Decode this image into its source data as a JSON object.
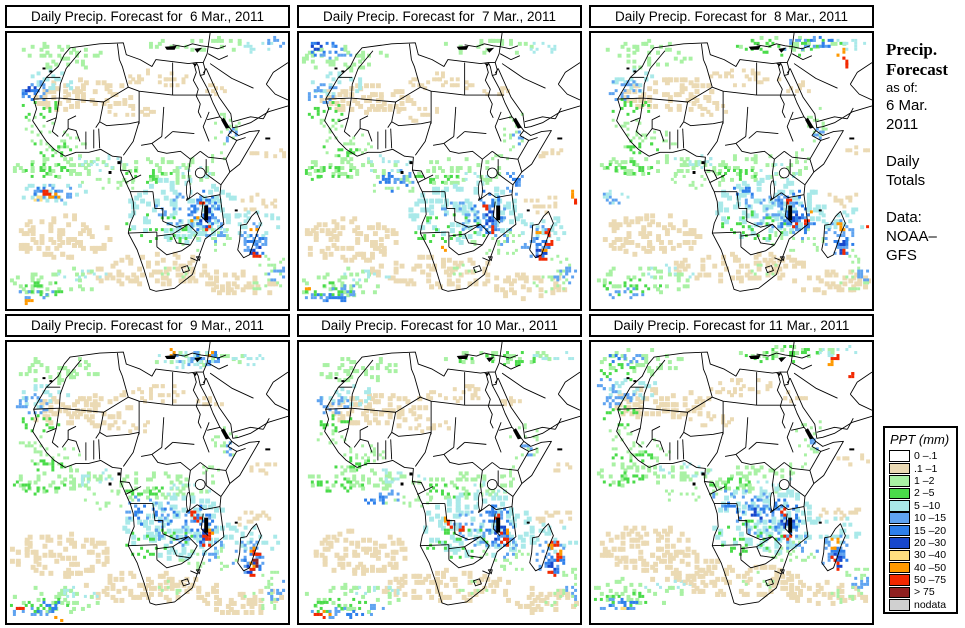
{
  "panels": [
    {
      "title": "Daily Precip. Forecast for  6 Mar., 2011",
      "seed": 11,
      "shift": [
        0,
        0
      ],
      "extra_spots": [
        [
          "b2",
          24,
          60,
          9,
          6,
          10
        ],
        [
          "b3",
          22,
          57,
          5,
          4,
          5
        ],
        [
          "c1",
          48,
          160,
          34,
          11,
          24,
          4
        ],
        [
          "b1",
          44,
          161,
          24,
          8,
          18
        ],
        [
          "b2",
          38,
          161,
          14,
          6,
          12
        ],
        [
          "y",
          30,
          166,
          7,
          3,
          5
        ],
        [
          "o",
          45,
          163,
          6,
          3,
          6
        ],
        [
          "r",
          39,
          161,
          6,
          3,
          7
        ],
        [
          "o",
          190,
          190,
          4,
          3,
          3
        ],
        [
          "r",
          283,
          236,
          3,
          3,
          3
        ],
        [
          "o",
          20,
          270,
          5,
          3,
          4
        ],
        [
          "b1",
          268,
          8,
          12,
          5,
          8
        ]
      ]
    },
    {
      "title": "Daily Precip. Forecast for  7 Mar., 2011",
      "seed": 22,
      "shift": [
        -6,
        2
      ],
      "extra_spots": [
        [
          "b2",
          28,
          12,
          16,
          8,
          14
        ],
        [
          "b1",
          42,
          18,
          18,
          8,
          12
        ],
        [
          "b3",
          20,
          10,
          8,
          5,
          6
        ],
        [
          "b2",
          100,
          148,
          16,
          10,
          14
        ],
        [
          "b1",
          110,
          142,
          16,
          8,
          10
        ],
        [
          "o",
          150,
          216,
          4,
          3,
          3
        ],
        [
          "r",
          284,
          168,
          3,
          6,
          5
        ],
        [
          "o",
          283,
          160,
          3,
          4,
          3
        ],
        [
          "r",
          258,
          200,
          4,
          4,
          5
        ],
        [
          "r",
          257,
          210,
          4,
          4,
          4
        ],
        [
          "o",
          255,
          216,
          3,
          3,
          3
        ],
        [
          "o",
          12,
          255,
          4,
          3,
          4
        ],
        [
          "b2",
          35,
          265,
          20,
          7,
          12
        ],
        [
          "b1",
          50,
          258,
          18,
          6,
          10
        ],
        [
          "b1",
          222,
          150,
          10,
          12,
          10
        ],
        [
          "b2",
          224,
          142,
          6,
          8,
          6
        ]
      ]
    },
    {
      "title": "Daily Precip. Forecast for  8 Mar., 2011",
      "seed": 33,
      "shift": [
        4,
        -2
      ],
      "extra_spots": [
        [
          "g2",
          195,
          14,
          55,
          8,
          28
        ],
        [
          "b1",
          212,
          12,
          28,
          7,
          18
        ],
        [
          "b2",
          228,
          10,
          12,
          5,
          8
        ],
        [
          "r",
          251,
          30,
          4,
          6,
          6
        ],
        [
          "o",
          249,
          20,
          4,
          4,
          4
        ],
        [
          "b1",
          14,
          170,
          10,
          6,
          8
        ],
        [
          "c1",
          20,
          166,
          16,
          7,
          8
        ],
        [
          "b2",
          150,
          160,
          16,
          8,
          10
        ],
        [
          "r",
          213,
          192,
          4,
          5,
          5
        ],
        [
          "o",
          216,
          186,
          3,
          4,
          3
        ],
        [
          "b2",
          208,
          192,
          14,
          10,
          12
        ],
        [
          "r",
          278,
          198,
          5,
          3,
          4
        ],
        [
          "o",
          248,
          196,
          3,
          4,
          3
        ],
        [
          "r",
          282,
          118,
          3,
          4,
          4
        ]
      ]
    },
    {
      "title": "Daily Precip. Forecast for  9 Mar., 2011",
      "seed": 44,
      "shift": [
        -3,
        4
      ],
      "extra_spots": [
        [
          "c1",
          185,
          12,
          42,
          9,
          30
        ],
        [
          "b1",
          196,
          11,
          26,
          7,
          16
        ],
        [
          "b2",
          206,
          9,
          12,
          5,
          8
        ],
        [
          "o",
          209,
          6,
          4,
          3,
          3
        ],
        [
          "o",
          170,
          5,
          4,
          3,
          3
        ],
        [
          "b2",
          152,
          168,
          22,
          12,
          18
        ],
        [
          "b1",
          142,
          160,
          26,
          12,
          16
        ],
        [
          "dr",
          255,
          210,
          3,
          8,
          6
        ],
        [
          "r",
          255,
          204,
          4,
          5,
          5
        ],
        [
          "o",
          250,
          218,
          4,
          3,
          3
        ],
        [
          "r",
          15,
          260,
          4,
          3,
          4
        ],
        [
          "o",
          55,
          270,
          5,
          3,
          4
        ],
        [
          "b2",
          40,
          258,
          16,
          6,
          10
        ],
        [
          "r",
          204,
          188,
          5,
          4,
          6
        ],
        [
          "o",
          208,
          184,
          4,
          3,
          4
        ],
        [
          "r",
          190,
          166,
          4,
          3,
          4
        ]
      ]
    },
    {
      "title": "Daily Precip. Forecast for 10 Mar., 2011",
      "seed": 55,
      "shift": [
        5,
        3
      ],
      "extra_spots": [
        [
          "r",
          148,
          176,
          4,
          3,
          4
        ],
        [
          "r",
          160,
          180,
          4,
          3,
          4
        ],
        [
          "o",
          144,
          172,
          3,
          3,
          3
        ],
        [
          "r",
          201,
          188,
          5,
          5,
          7
        ],
        [
          "o",
          206,
          184,
          4,
          3,
          3
        ],
        [
          "r",
          253,
          196,
          4,
          3,
          4
        ],
        [
          "r",
          255,
          210,
          4,
          4,
          5
        ],
        [
          "o",
          258,
          204,
          3,
          3,
          3
        ],
        [
          "r",
          14,
          268,
          5,
          3,
          5
        ],
        [
          "o",
          24,
          266,
          4,
          3,
          3
        ],
        [
          "b2",
          55,
          268,
          14,
          5,
          8
        ],
        [
          "b1",
          70,
          262,
          12,
          5,
          7
        ],
        [
          "b2",
          72,
          154,
          12,
          5,
          8
        ],
        [
          "b1",
          84,
          150,
          16,
          6,
          10
        ],
        [
          "g2",
          195,
          12,
          40,
          7,
          20
        ]
      ]
    },
    {
      "title": "Daily Precip. Forecast for 11 Mar., 2011",
      "seed": 66,
      "shift": [
        -2,
        -3
      ],
      "extra_spots": [
        [
          "r",
          249,
          16,
          4,
          4,
          5
        ],
        [
          "o",
          245,
          24,
          4,
          3,
          3
        ],
        [
          "r",
          266,
          32,
          3,
          4,
          4
        ],
        [
          "g2",
          30,
          32,
          20,
          10,
          14
        ],
        [
          "b1",
          40,
          20,
          14,
          7,
          10
        ],
        [
          "b2",
          24,
          17,
          8,
          5,
          6
        ],
        [
          "b1",
          14,
          44,
          10,
          8,
          8
        ],
        [
          "b2",
          162,
          168,
          26,
          12,
          20
        ],
        [
          "b1",
          150,
          158,
          30,
          12,
          18
        ],
        [
          "b3",
          170,
          172,
          8,
          6,
          6
        ],
        [
          "o",
          250,
          208,
          4,
          3,
          4
        ],
        [
          "r",
          246,
          216,
          3,
          3,
          3
        ],
        [
          "o",
          284,
          202,
          3,
          3,
          3
        ],
        [
          "r",
          284,
          196,
          3,
          3,
          3
        ],
        [
          "b2",
          36,
          262,
          18,
          6,
          10
        ],
        [
          "y",
          30,
          266,
          4,
          3,
          3
        ],
        [
          "t",
          100,
          226,
          60,
          13,
          40,
          5
        ],
        [
          "g2",
          198,
          14,
          44,
          7,
          22
        ]
      ]
    }
  ],
  "base_spots": [
    [
      "t",
      75,
      62,
      52,
      16,
      70,
      5
    ],
    [
      "t",
      150,
      45,
      35,
      9,
      26,
      4
    ],
    [
      "t",
      125,
      78,
      25,
      7,
      14,
      4
    ],
    [
      "t",
      55,
      205,
      50,
      22,
      90,
      5
    ],
    [
      "t",
      145,
      238,
      68,
      16,
      80,
      5
    ],
    [
      "t",
      240,
      252,
      42,
      12,
      40,
      5
    ],
    [
      "t",
      265,
      120,
      18,
      6,
      10,
      4
    ],
    [
      "t",
      205,
      55,
      15,
      5,
      8,
      4
    ],
    [
      "t",
      252,
      170,
      22,
      8,
      14,
      4
    ],
    [
      "g1",
      52,
      22,
      44,
      13,
      40,
      4
    ],
    [
      "c1",
      42,
      48,
      26,
      12,
      20,
      4
    ],
    [
      "b1",
      28,
      58,
      16,
      11,
      20
    ],
    [
      "g2",
      34,
      76,
      22,
      10,
      14
    ],
    [
      "g1",
      30,
      92,
      18,
      8,
      10
    ],
    [
      "g1",
      195,
      10,
      55,
      7,
      24,
      4
    ],
    [
      "c1",
      252,
      12,
      22,
      6,
      10
    ],
    [
      "g1",
      52,
      110,
      30,
      12,
      24
    ],
    [
      "g2",
      44,
      116,
      22,
      7,
      12
    ],
    [
      "g1",
      55,
      133,
      55,
      11,
      44,
      4
    ],
    [
      "g2",
      35,
      138,
      28,
      7,
      18
    ],
    [
      "c1",
      95,
      130,
      28,
      8,
      14
    ],
    [
      "g1",
      100,
      152,
      30,
      8,
      14
    ],
    [
      "g1",
      160,
      138,
      52,
      14,
      48,
      4
    ],
    [
      "g2",
      145,
      143,
      25,
      7,
      14
    ],
    [
      "c1",
      185,
      142,
      22,
      8,
      10
    ],
    [
      "c1",
      175,
      178,
      58,
      32,
      110,
      5
    ],
    [
      "g2",
      158,
      196,
      38,
      16,
      28
    ],
    [
      "b1",
      182,
      180,
      34,
      18,
      40
    ],
    [
      "b2",
      196,
      178,
      16,
      22,
      28
    ],
    [
      "b3",
      200,
      186,
      7,
      10,
      9
    ],
    [
      "g1",
      205,
      210,
      30,
      14,
      22
    ],
    [
      "b1",
      208,
      200,
      12,
      12,
      12
    ],
    [
      "r",
      196,
      172,
      4,
      3,
      4
    ],
    [
      "r",
      202,
      196,
      4,
      3,
      3
    ],
    [
      "c1",
      252,
      192,
      24,
      16,
      20,
      4
    ],
    [
      "b1",
      246,
      208,
      16,
      18,
      24
    ],
    [
      "b2",
      252,
      214,
      10,
      12,
      14
    ],
    [
      "b3",
      250,
      220,
      5,
      7,
      6
    ],
    [
      "r",
      251,
      224,
      4,
      4,
      4
    ],
    [
      "o",
      248,
      200,
      4,
      3,
      3
    ],
    [
      "g1",
      268,
      230,
      14,
      10,
      10
    ],
    [
      "b1",
      274,
      244,
      10,
      8,
      9
    ],
    [
      "g1",
      222,
      95,
      14,
      20,
      16
    ],
    [
      "b1",
      226,
      102,
      6,
      7,
      6
    ],
    [
      "g1",
      210,
      125,
      10,
      8,
      7
    ],
    [
      "g1",
      48,
      250,
      48,
      14,
      36,
      4
    ],
    [
      "g2",
      35,
      258,
      30,
      8,
      18
    ],
    [
      "b1",
      28,
      264,
      22,
      6,
      12
    ],
    [
      "c1",
      75,
      244,
      26,
      7,
      10
    ],
    [
      "g1",
      262,
      252,
      20,
      10,
      12
    ],
    [
      "b1",
      280,
      240,
      7,
      7,
      6
    ],
    [
      "g1",
      170,
      240,
      16,
      8,
      7
    ]
  ],
  "map_colors": {
    "t": "#EBDAB4",
    "g1": "#A9F1A4",
    "g2": "#4ADB4A",
    "c1": "#A9E9E9",
    "b1": "#5FA3F0",
    "b2": "#2E7FEB",
    "b3": "#1747CC",
    "y": "#FFDF7F",
    "o": "#FF9900",
    "r": "#F22800",
    "dr": "#8F2020"
  },
  "sidebar": {
    "heading_line1": "Precip.",
    "heading_line2": "Forecast",
    "as_of_label": "as of:",
    "as_of_date_line1": "6 Mar.",
    "as_of_date_line2": "2011",
    "totals_line1": "Daily",
    "totals_line2": "Totals",
    "data_label": "Data:",
    "data_source_line1": "NOAA–",
    "data_source_line2": "GFS"
  },
  "legend": {
    "title": "PPT (mm)",
    "entries": [
      {
        "label": "0 –.1",
        "color": "#FFFFFF"
      },
      {
        "label": ".1 –1",
        "color": "#EBDAB4"
      },
      {
        "label": "1 –2",
        "color": "#A9F1A4"
      },
      {
        "label": "2 –5",
        "color": "#4ADB4A"
      },
      {
        "label": "5 –10",
        "color": "#A9E9E9"
      },
      {
        "label": "10 –15",
        "color": "#5FA3F0"
      },
      {
        "label": "15 –20",
        "color": "#2E7FEB"
      },
      {
        "label": "20 –30",
        "color": "#1747CC"
      },
      {
        "label": "30 –40",
        "color": "#FFDF7F"
      },
      {
        "label": "40 –50",
        "color": "#FF9900"
      },
      {
        "label": "50 –75",
        "color": "#F22800"
      },
      {
        "label": "> 75",
        "color": "#8F2020"
      },
      {
        "label": "nodata",
        "color": "#D0D0D0"
      }
    ]
  }
}
